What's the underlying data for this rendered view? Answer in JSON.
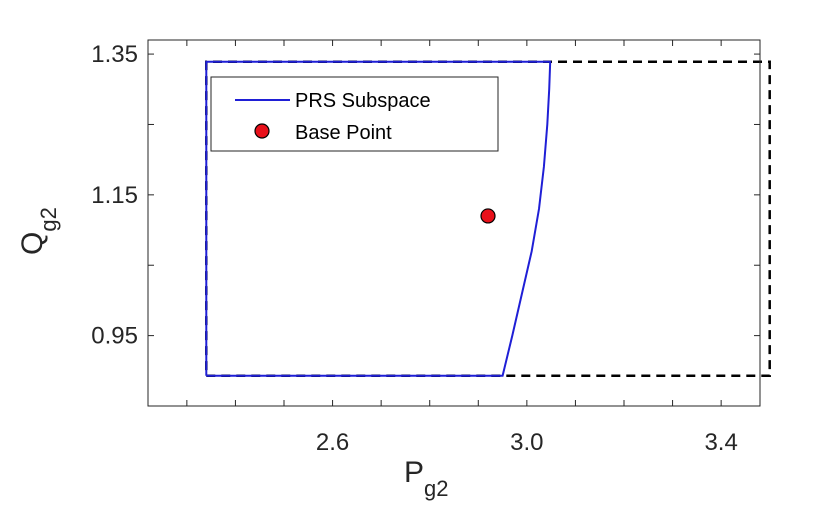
{
  "chart_data": {
    "type": "line",
    "title": "",
    "xlabel": {
      "main": "P",
      "sub": "g2"
    },
    "ylabel": {
      "main": "Q",
      "sub": "g2"
    },
    "xlim": [
      2.22,
      3.48
    ],
    "ylim": [
      0.85,
      1.37
    ],
    "xticks": [
      2.6,
      3.0,
      3.4
    ],
    "xtick_labels": [
      "2.6",
      "3.0",
      "3.4"
    ],
    "xminor": [
      2.3,
      2.4,
      2.5,
      2.7,
      2.8,
      2.9,
      3.1,
      3.2,
      3.3
    ],
    "yticks": [
      0.95,
      1.15,
      1.35
    ],
    "ytick_labels": [
      "0.95",
      "1.15",
      "1.35"
    ],
    "yminor": [
      1.05,
      1.25
    ],
    "grid": false,
    "legend_position": "top-left",
    "series": [
      {
        "kind": "dashed-box",
        "color": "#000000",
        "x": [
          2.34,
          3.5,
          3.5,
          2.34,
          2.34
        ],
        "y": [
          0.893,
          0.893,
          1.339,
          1.339,
          0.893
        ]
      },
      {
        "name": "PRS Subspace",
        "kind": "line",
        "color": "#1f1fd6",
        "x": [
          2.34,
          2.95,
          2.97,
          2.99,
          3.01,
          3.025,
          3.035,
          3.042,
          3.046,
          3.048,
          2.34,
          2.34
        ],
        "y": [
          0.893,
          0.893,
          0.95,
          1.01,
          1.07,
          1.13,
          1.19,
          1.25,
          1.3,
          1.339,
          1.339,
          0.893
        ]
      },
      {
        "name": "Base Point",
        "kind": "point",
        "color": "#e8101a",
        "x": [
          2.92
        ],
        "y": [
          1.12
        ]
      }
    ]
  }
}
